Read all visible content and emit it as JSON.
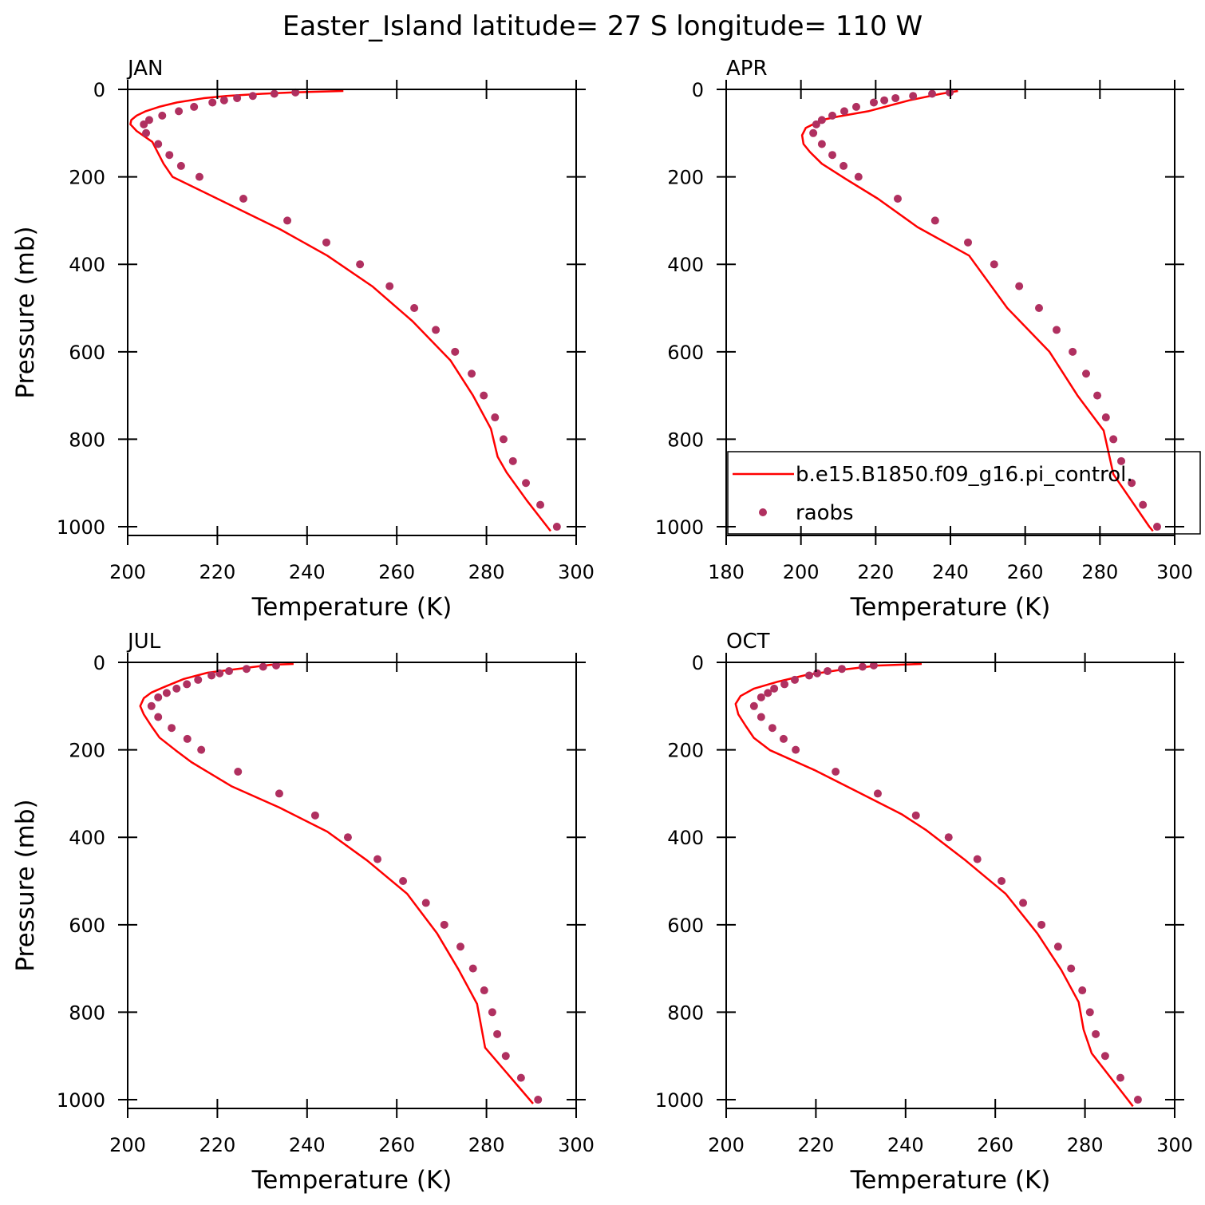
{
  "title": "Easter_Island  latitude= 27 S longitude= 110 W",
  "chart_data": [
    {
      "type": "line",
      "title": "JAN",
      "xlabel": "Temperature (K)",
      "ylabel": "Pressure (mb)",
      "xlim": [
        200,
        300
      ],
      "ylim": [
        1020,
        0
      ],
      "xticks": [
        200,
        220,
        240,
        260,
        280,
        300
      ],
      "yticks": [
        0,
        200,
        400,
        600,
        800,
        1000
      ],
      "series": [
        {
          "name": "b.e15.B1850.f09_g16.pi_control.",
          "color": "#ff0000",
          "style": "line",
          "x": [
            248.1,
            237,
            230,
            222,
            217,
            211,
            207,
            204,
            202,
            200.8,
            200.6,
            202,
            205.5,
            207,
            208,
            210,
            220,
            234,
            244.5,
            254.5,
            263.5,
            272,
            277,
            281,
            282.5,
            284.5,
            289,
            294.3
          ],
          "y": [
            3.6,
            7,
            10,
            15,
            20,
            30,
            40,
            50,
            60,
            70,
            80,
            95,
            120,
            150,
            170,
            200,
            250,
            320,
            380,
            450,
            530,
            620,
            700,
            776,
            840,
            876,
            940,
            1010
          ]
        },
        {
          "name": "raobs",
          "color": "#b03060",
          "style": "markers",
          "x": [
            237.4,
            232.7,
            227.9,
            224.4,
            221.5,
            218.9,
            214.8,
            211.4,
            207.7,
            204.8,
            203.6,
            204.1,
            206.8,
            209.3,
            211.9,
            216.0,
            225.8,
            235.6,
            244.3,
            251.8,
            258.4,
            263.9,
            268.7,
            273.0,
            276.7,
            279.4,
            281.9,
            283.8,
            285.9,
            288.8,
            292.0,
            295.7
          ],
          "y": [
            7,
            10,
            15,
            20,
            25,
            30,
            40,
            50,
            60,
            70,
            80,
            100,
            125,
            150,
            175,
            200,
            250,
            300,
            350,
            400,
            450,
            500,
            550,
            600,
            650,
            700,
            750,
            800,
            850,
            900,
            950,
            1000
          ]
        }
      ]
    },
    {
      "type": "line",
      "title": "APR",
      "xlabel": "Temperature (K)",
      "legend": "lower right",
      "xlim": [
        180,
        300
      ],
      "ylim": [
        1020,
        0
      ],
      "xticks": [
        180,
        200,
        220,
        240,
        260,
        280,
        300
      ],
      "yticks": [
        0,
        200,
        400,
        600,
        800,
        1000
      ],
      "series": [
        {
          "name": "b.e15.B1850.f09_g16.pi_control.",
          "color": "#ff0000",
          "style": "line",
          "x": [
            242,
            237.5,
            229,
            218,
            210,
            205.6,
            201.3,
            200.3,
            200.7,
            202.4,
            205.6,
            212,
            220.6,
            231.2,
            245,
            255.2,
            266.5,
            274,
            281,
            283.6,
            293.2,
            294.2
          ],
          "y": [
            3.6,
            10,
            25,
            50,
            62,
            70,
            88,
            105,
            125,
            143,
            170,
            205,
            250,
            315,
            380,
            500,
            600,
            700,
            780,
            880,
            1000,
            1010
          ]
        },
        {
          "name": "raobs",
          "color": "#b03060",
          "style": "markers",
          "x": [
            239.8,
            235.1,
            230.0,
            225.3,
            222.3,
            219.5,
            214.8,
            211.6,
            208.4,
            205.6,
            204.1,
            203.3,
            205.6,
            208.4,
            211.4,
            215.4,
            225.9,
            235.9,
            244.7,
            251.7,
            258.4,
            263.7,
            268.4,
            272.7,
            276.3,
            279.3,
            281.6,
            283.6,
            285.7,
            288.5,
            291.5,
            295.3
          ],
          "y": [
            7,
            10,
            15,
            20,
            25,
            30,
            40,
            50,
            60,
            70,
            80,
            100,
            125,
            150,
            175,
            200,
            250,
            300,
            350,
            400,
            450,
            500,
            550,
            600,
            650,
            700,
            750,
            800,
            850,
            900,
            950,
            1000
          ]
        }
      ]
    },
    {
      "type": "line",
      "title": "JUL",
      "xlabel": "Temperature (K)",
      "ylabel": "Pressure (mb)",
      "xlim": [
        200,
        300
      ],
      "ylim": [
        1020,
        0
      ],
      "xticks": [
        200,
        220,
        240,
        260,
        280,
        300
      ],
      "yticks": [
        0,
        200,
        400,
        600,
        800,
        1000
      ],
      "series": [
        {
          "name": "b.e15.B1850.f09_g16.pi_control.",
          "color": "#ff0000",
          "style": "line",
          "x": [
            237,
            232,
            224.9,
            217.8,
            212.5,
            208,
            205.3,
            203.6,
            202.8,
            203.6,
            205.3,
            207.1,
            210.7,
            214.2,
            223.1,
            233.8,
            244.5,
            253.4,
            262.3,
            269,
            273.8,
            277.9,
            279.7,
            290.4
          ],
          "y": [
            3.6,
            5.5,
            14.6,
            23.7,
            38,
            57,
            69,
            82,
            100,
            119,
            146,
            172,
            201,
            228,
            283,
            332,
            387,
            453,
            529,
            620,
            703,
            781,
            881,
            1009
          ]
        },
        {
          "name": "raobs",
          "color": "#b03060",
          "style": "markers",
          "x": [
            233.1,
            230.2,
            226.5,
            222.6,
            220.5,
            218.7,
            215.7,
            213.2,
            210.9,
            208.7,
            206.8,
            205.3,
            206.8,
            209.8,
            213.3,
            216.4,
            224.6,
            233.8,
            241.8,
            249.1,
            255.7,
            261.4,
            266.5,
            270.6,
            274.2,
            277.0,
            279.5,
            281.3,
            282.4,
            284.3,
            287.7,
            291.5
          ],
          "y": [
            7,
            10,
            15,
            20,
            25,
            30,
            40,
            50,
            60,
            70,
            80,
            100,
            125,
            150,
            175,
            200,
            250,
            300,
            350,
            400,
            450,
            500,
            550,
            600,
            650,
            700,
            750,
            800,
            850,
            900,
            950,
            1000
          ]
        }
      ]
    },
    {
      "type": "line",
      "title": "OCT",
      "xlabel": "Temperature (K)",
      "xlim": [
        200,
        300
      ],
      "ylim": [
        1020,
        0
      ],
      "xticks": [
        200,
        220,
        240,
        260,
        280,
        300
      ],
      "yticks": [
        0,
        200,
        400,
        600,
        800,
        1000
      ],
      "series": [
        {
          "name": "b.e15.B1850.f09_g16.pi_control.",
          "color": "#ff0000",
          "style": "line",
          "x": [
            243.6,
            233.8,
            224.9,
            217.8,
            211.6,
            206.2,
            203.2,
            202.1,
            202.7,
            204.4,
            206.2,
            209.8,
            219.6,
            228.5,
            239.1,
            244.5,
            253.4,
            262.3,
            269.4,
            274.7,
            278.6,
            279.7,
            281.5,
            290.7
          ],
          "y": [
            3.6,
            7.3,
            18,
            29,
            44,
            60,
            77,
            95,
            119,
            146,
            173,
            201,
            246,
            292,
            347,
            383,
            453,
            529,
            620,
            703,
            777,
            840,
            894,
            1015
          ]
        },
        {
          "name": "raobs",
          "color": "#b03060",
          "style": "markers",
          "x": [
            232.9,
            230.4,
            225.8,
            222.6,
            220.3,
            218.5,
            215.3,
            213.0,
            210.7,
            209.3,
            207.8,
            206.2,
            207.8,
            210.3,
            212.8,
            215.5,
            224.4,
            233.8,
            242.3,
            249.6,
            256.0,
            261.4,
            266.2,
            270.3,
            274.0,
            276.9,
            279.4,
            281.1,
            282.4,
            284.5,
            287.9,
            291.8
          ],
          "y": [
            7,
            10,
            15,
            20,
            25,
            30,
            40,
            50,
            60,
            70,
            80,
            100,
            125,
            150,
            175,
            200,
            250,
            300,
            350,
            400,
            450,
            500,
            550,
            600,
            650,
            700,
            750,
            800,
            850,
            900,
            950,
            1000
          ]
        }
      ]
    }
  ]
}
